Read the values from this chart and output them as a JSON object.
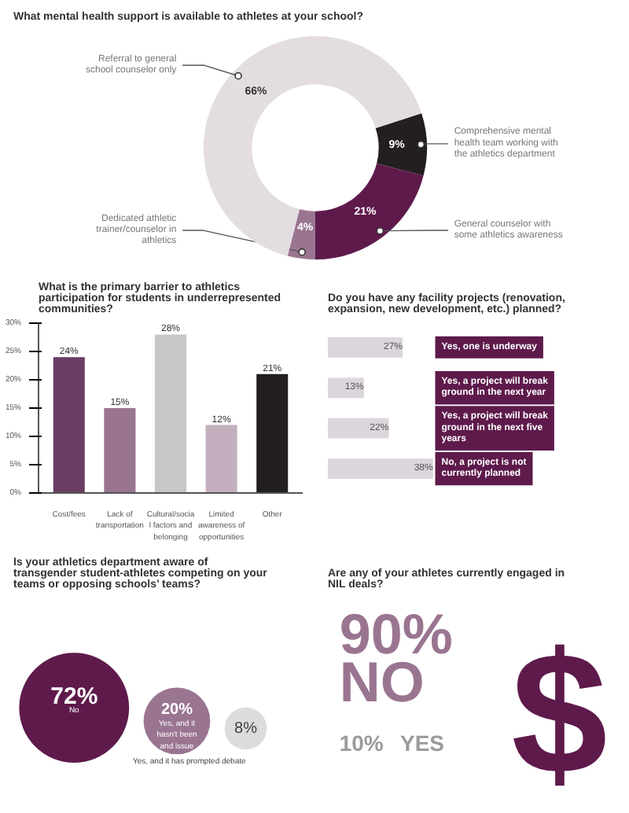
{
  "chart_data": [
    {
      "type": "donut",
      "title": "What mental health support is available to athletes at your school?",
      "categories": [
        "Comprehensive mental health team working with the athletics department",
        "General counselor with some athletics awareness",
        "Dedicated athletic trainer/counselor in athletics",
        "Referral to general school counselor only"
      ],
      "values": [
        9,
        21,
        4,
        66
      ],
      "colors": [
        "#231f20",
        "#5e1a4b",
        "#9a7591",
        "#e3dde2"
      ],
      "value_labels": [
        "9%",
        "21%",
        "4%",
        "66%"
      ]
    },
    {
      "type": "bar",
      "title": "What is the primary barrier to athletics participation for students in underrepresented communities?",
      "categories": [
        "Cost/fees",
        "Lack of transportation",
        "Cultural/social factors and belonging",
        "Limited awareness of opportunities",
        "Other"
      ],
      "values": [
        24,
        15,
        28,
        12,
        21
      ],
      "colors": [
        "#6b3d62",
        "#9a7591",
        "#c8c6c8",
        "#c4afbe",
        "#231f20"
      ],
      "value_labels": [
        "24%",
        "15%",
        "28%",
        "12%",
        "21%"
      ],
      "ylim": [
        0,
        30
      ],
      "yticks": [
        {
          "value": 0,
          "label": "0%"
        },
        {
          "value": 5,
          "label": "5%"
        },
        {
          "value": 10,
          "label": "10%"
        },
        {
          "value": 15,
          "label": "15%"
        },
        {
          "value": 20,
          "label": "20%"
        },
        {
          "value": 25,
          "label": "25%"
        },
        {
          "value": 30,
          "label": "30%"
        }
      ],
      "grid": false
    },
    {
      "type": "bar",
      "orientation": "horizontal",
      "title": "Do you have any facility projects (renovation, expansion, new development, etc.) planned?",
      "categories": [
        "Yes, one is underway",
        "Yes, a project will break ground in the next year",
        "Yes, a project will break ground in the next five years",
        "No, a project is not currently planned"
      ],
      "values": [
        27,
        13,
        22,
        38
      ],
      "color": "#ddd5dc",
      "value_labels": [
        "27%",
        "13%",
        "22%",
        "38%"
      ]
    },
    {
      "type": "other",
      "title": "Is your athletics department aware of transgender student-athletes competing on your teams or opposing schools’ teams?",
      "categories": [
        "No",
        "Yes, and it hasn't been and issue",
        "Yes, and it has prompted debate"
      ],
      "values": [
        72,
        20,
        8
      ],
      "colors": [
        "#5e1a4b",
        "#9a7591",
        "#dcdcdc"
      ],
      "value_labels": [
        "72%",
        "20%",
        "8%"
      ]
    },
    {
      "type": "other",
      "title": "Are any of your athletes currently engaged in NIL deals?",
      "categories": [
        "NO",
        "YES"
      ],
      "values": [
        90,
        10
      ],
      "colors": [
        "#9a7591",
        "#9b9b9b"
      ],
      "value_labels": [
        "90%",
        "10%"
      ],
      "annotations": [
        "$"
      ]
    }
  ]
}
